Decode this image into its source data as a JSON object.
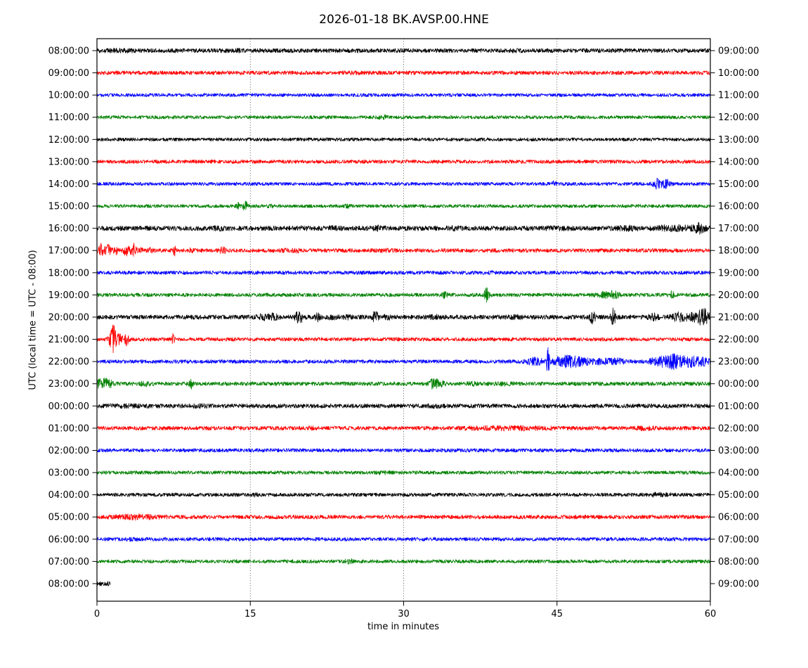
{
  "chart_data": {
    "type": "line",
    "subtype": "helicorder-dayplot-seismogram",
    "title": "2026-01-18 BK.AVSP.00.HNE",
    "xlabel": "time in minutes",
    "ylabel": "UTC (local time = UTC - 08:00)",
    "xlim": [
      0,
      60
    ],
    "x_ticks": [
      0,
      15,
      30,
      45,
      60
    ],
    "x_tick_labels": [
      "0",
      "15",
      "30",
      "45",
      "60"
    ],
    "grid_x_minutes": [
      15,
      30,
      45
    ],
    "grid_style": "dotted",
    "color_cycle": [
      "#000000",
      "#ff0000",
      "#0000ff",
      "#008000"
    ],
    "left_axis_unit": "UTC start time of row",
    "right_axis_unit": "UTC end time of row",
    "traces": [
      {
        "utc_label": "08:00:00",
        "right_label": "09:00:00",
        "color": "#000000",
        "base_amp": 3.0,
        "duration": 60,
        "events": [
          {
            "t": 2,
            "amp": 0.8,
            "w": 1.5
          },
          {
            "t": 13.5,
            "amp": 0.8,
            "w": 0.8
          },
          {
            "t": 41,
            "amp": 0.6,
            "w": 1.0
          }
        ]
      },
      {
        "utc_label": "09:00:00",
        "right_label": "10:00:00",
        "color": "#ff0000",
        "base_amp": 2.8,
        "duration": 60,
        "events": [
          {
            "t": 25,
            "amp": 0.5,
            "w": 1.0
          }
        ]
      },
      {
        "utc_label": "10:00:00",
        "right_label": "11:00:00",
        "color": "#0000ff",
        "base_amp": 2.4,
        "duration": 60,
        "events": [
          {
            "t": 21,
            "amp": 0.5,
            "w": 0.5
          }
        ]
      },
      {
        "utc_label": "11:00:00",
        "right_label": "12:00:00",
        "color": "#008000",
        "base_amp": 2.4,
        "duration": 60,
        "events": [
          {
            "t": 28,
            "amp": 2.0,
            "w": 0.4
          }
        ]
      },
      {
        "utc_label": "12:00:00",
        "right_label": "13:00:00",
        "color": "#000000",
        "base_amp": 2.4,
        "duration": 60,
        "events": []
      },
      {
        "utc_label": "13:00:00",
        "right_label": "14:00:00",
        "color": "#ff0000",
        "base_amp": 2.6,
        "duration": 60,
        "events": []
      },
      {
        "utc_label": "14:00:00",
        "right_label": "15:00:00",
        "color": "#0000ff",
        "base_amp": 2.4,
        "duration": 60,
        "events": [
          {
            "t": 44.7,
            "amp": 2.5,
            "w": 0.2
          },
          {
            "t": 54.8,
            "amp": 6,
            "w": 0.4
          },
          {
            "t": 55.7,
            "amp": 5,
            "w": 0.4
          }
        ]
      },
      {
        "utc_label": "15:00:00",
        "right_label": "16:00:00",
        "color": "#008000",
        "base_amp": 2.4,
        "duration": 60,
        "events": [
          {
            "t": 13.8,
            "amp": 4,
            "w": 0.2
          },
          {
            "t": 14.5,
            "amp": 6.5,
            "w": 0.22
          },
          {
            "t": 17,
            "amp": 2,
            "w": 0.2
          },
          {
            "t": 24.5,
            "amp": 1.2,
            "w": 0.3
          }
        ]
      },
      {
        "utc_label": "16:00:00",
        "right_label": "17:00:00",
        "color": "#000000",
        "base_amp": 3.4,
        "duration": 60,
        "events": [
          {
            "t": 12,
            "amp": 1,
            "w": 0.6
          },
          {
            "t": 20,
            "amp": 1.2,
            "w": 0.5
          },
          {
            "t": 23,
            "amp": 1.2,
            "w": 0.5
          },
          {
            "t": 27.5,
            "amp": 1.4,
            "w": 0.6
          },
          {
            "t": 35,
            "amp": 1,
            "w": 0.6
          },
          {
            "t": 45,
            "amp": 1,
            "w": 1
          },
          {
            "t": 52,
            "amp": 1.5,
            "w": 1
          },
          {
            "t": 55.5,
            "amp": 2,
            "w": 0.8
          },
          {
            "t": 57.5,
            "amp": 2,
            "w": 1.5
          },
          {
            "t": 58.9,
            "amp": 5.5,
            "w": 0.5
          }
        ]
      },
      {
        "utc_label": "17:00:00",
        "right_label": "18:00:00",
        "color": "#ff0000",
        "base_amp": 2.8,
        "duration": 60,
        "events": [
          {
            "t": 0.5,
            "amp": 10,
            "w": 0.3
          },
          {
            "t": 1.15,
            "amp": 6.5,
            "w": 0.25
          },
          {
            "t": 1.85,
            "amp": 4.5,
            "w": 0.2
          },
          {
            "t": 2.9,
            "amp": 9,
            "w": 0.3
          },
          {
            "t": 3.6,
            "amp": 8,
            "w": 0.3
          },
          {
            "t": 4.3,
            "amp": 3.5,
            "w": 0.2
          },
          {
            "t": 5.2,
            "amp": 1.8,
            "w": 0.3
          },
          {
            "t": 7.6,
            "amp": 5.5,
            "w": 0.25
          },
          {
            "t": 9.2,
            "amp": 1.5,
            "w": 0.2
          },
          {
            "t": 12.3,
            "amp": 4.5,
            "w": 0.25
          },
          {
            "t": 18.3,
            "amp": 1.5,
            "w": 0.6
          },
          {
            "t": 19.5,
            "amp": 1.2,
            "w": 0.4
          },
          {
            "t": 28,
            "amp": 1,
            "w": 0.8
          }
        ]
      },
      {
        "utc_label": "18:00:00",
        "right_label": "19:00:00",
        "color": "#0000ff",
        "base_amp": 2.6,
        "duration": 60,
        "events": [
          {
            "t": 16,
            "amp": 1,
            "w": 0.3
          },
          {
            "t": 38.5,
            "amp": 1.8,
            "w": 0.2
          }
        ]
      },
      {
        "utc_label": "19:00:00",
        "right_label": "20:00:00",
        "color": "#008000",
        "base_amp": 2.6,
        "duration": 60,
        "events": [
          {
            "t": 34,
            "amp": 3.5,
            "w": 0.22
          },
          {
            "t": 38.1,
            "amp": 8.5,
            "w": 0.22
          },
          {
            "t": 49.8,
            "amp": 3,
            "w": 1.0
          },
          {
            "t": 50.6,
            "amp": 2.5,
            "w": 0.5
          },
          {
            "t": 56.2,
            "amp": 4.5,
            "w": 0.25
          }
        ]
      },
      {
        "utc_label": "20:00:00",
        "right_label": "21:00:00",
        "color": "#000000",
        "base_amp": 3.2,
        "duration": 60,
        "events": [
          {
            "t": 16.2,
            "amp": 2.5,
            "w": 0.5
          },
          {
            "t": 17.2,
            "amp": 3,
            "w": 0.5
          },
          {
            "t": 19.8,
            "amp": 7,
            "w": 0.4
          },
          {
            "t": 21.6,
            "amp": 4,
            "w": 0.25
          },
          {
            "t": 23,
            "amp": 2,
            "w": 0.4
          },
          {
            "t": 24.5,
            "amp": 1.5,
            "w": 0.4
          },
          {
            "t": 27.2,
            "amp": 8,
            "w": 0.3
          },
          {
            "t": 28.4,
            "amp": 3,
            "w": 0.3
          },
          {
            "t": 33,
            "amp": 1.5,
            "w": 0.5
          },
          {
            "t": 41,
            "amp": 1,
            "w": 0.8
          },
          {
            "t": 48.5,
            "amp": 10,
            "w": 0.22
          },
          {
            "t": 50.5,
            "amp": 10,
            "w": 0.22
          },
          {
            "t": 54.5,
            "amp": 3,
            "w": 0.5
          },
          {
            "t": 57,
            "amp": 5,
            "w": 0.7
          },
          {
            "t": 58.3,
            "amp": 4,
            "w": 0.5
          },
          {
            "t": 59.3,
            "amp": 12,
            "w": 0.5
          }
        ]
      },
      {
        "utc_label": "21:00:00",
        "right_label": "22:00:00",
        "color": "#ff0000",
        "base_amp": 2.6,
        "duration": 60,
        "events": [
          {
            "t": 1.6,
            "amp": 21,
            "w": 0.35
          },
          {
            "t": 2.3,
            "amp": 5,
            "w": 0.3
          },
          {
            "t": 2.9,
            "amp": 8,
            "w": 0.2
          },
          {
            "t": 7.4,
            "amp": 6.5,
            "w": 0.18
          }
        ]
      },
      {
        "utc_label": "22:00:00",
        "right_label": "23:00:00",
        "color": "#0000ff",
        "base_amp": 2.6,
        "duration": 60,
        "events": [
          {
            "t": 42.8,
            "amp": 4,
            "w": 0.8
          },
          {
            "t": 44.1,
            "amp": 19,
            "w": 0.15
          },
          {
            "t": 45.6,
            "amp": 4.5,
            "w": 1.2
          },
          {
            "t": 47,
            "amp": 4.5,
            "w": 1.5
          },
          {
            "t": 49.5,
            "amp": 3,
            "w": 0.8
          },
          {
            "t": 51,
            "amp": 3,
            "w": 0.8
          },
          {
            "t": 55,
            "amp": 6,
            "w": 0.9
          },
          {
            "t": 56.3,
            "amp": 7,
            "w": 0.7
          },
          {
            "t": 57.3,
            "amp": 6,
            "w": 0.8
          },
          {
            "t": 58.3,
            "amp": 5,
            "w": 0.7
          },
          {
            "t": 59.3,
            "amp": 4.5,
            "w": 0.6
          }
        ]
      },
      {
        "utc_label": "23:00:00",
        "right_label": "00:00:00",
        "color": "#008000",
        "base_amp": 2.8,
        "duration": 60,
        "events": [
          {
            "t": 0.4,
            "amp": 5.5,
            "w": 0.5
          },
          {
            "t": 1.1,
            "amp": 4.5,
            "w": 0.4
          },
          {
            "t": 4.7,
            "amp": 2.5,
            "w": 0.4
          },
          {
            "t": 9.2,
            "amp": 6,
            "w": 0.18
          },
          {
            "t": 32.9,
            "amp": 5.5,
            "w": 0.5
          },
          {
            "t": 33.6,
            "amp": 2.5,
            "w": 0.4
          },
          {
            "t": 36.8,
            "amp": 1.3,
            "w": 0.6
          },
          {
            "t": 40,
            "amp": 1,
            "w": 0.8
          }
        ]
      },
      {
        "utc_label": "00:00:00",
        "right_label": "01:00:00",
        "color": "#000000",
        "base_amp": 3.0,
        "duration": 60,
        "events": [
          {
            "t": 3,
            "amp": 0.8,
            "w": 2
          },
          {
            "t": 10,
            "amp": 0.8,
            "w": 1
          },
          {
            "t": 33,
            "amp": 0.8,
            "w": 1
          }
        ]
      },
      {
        "utc_label": "01:00:00",
        "right_label": "02:00:00",
        "color": "#ff0000",
        "base_amp": 2.8,
        "duration": 60,
        "events": [
          {
            "t": 21,
            "amp": 0.6,
            "w": 0.8
          },
          {
            "t": 40,
            "amp": 1.6,
            "w": 4
          },
          {
            "t": 53.5,
            "amp": 1.4,
            "w": 0.8
          }
        ]
      },
      {
        "utc_label": "02:00:00",
        "right_label": "03:00:00",
        "color": "#0000ff",
        "base_amp": 2.6,
        "duration": 60,
        "events": []
      },
      {
        "utc_label": "03:00:00",
        "right_label": "04:00:00",
        "color": "#008000",
        "base_amp": 2.5,
        "duration": 60,
        "events": [
          {
            "t": 28,
            "amp": 1,
            "w": 0.8
          }
        ]
      },
      {
        "utc_label": "04:00:00",
        "right_label": "05:00:00",
        "color": "#000000",
        "base_amp": 2.6,
        "duration": 60,
        "events": [
          {
            "t": 15.5,
            "amp": 0.8,
            "w": 0.4
          },
          {
            "t": 55,
            "amp": 1.6,
            "w": 1
          }
        ]
      },
      {
        "utc_label": "05:00:00",
        "right_label": "06:00:00",
        "color": "#ff0000",
        "base_amp": 2.8,
        "duration": 60,
        "events": [
          {
            "t": 4,
            "amp": 2.2,
            "w": 1.8
          }
        ]
      },
      {
        "utc_label": "06:00:00",
        "right_label": "07:00:00",
        "color": "#0000ff",
        "base_amp": 2.6,
        "duration": 60,
        "events": [
          {
            "t": 3.5,
            "amp": 1,
            "w": 0.5
          }
        ]
      },
      {
        "utc_label": "07:00:00",
        "right_label": "08:00:00",
        "color": "#008000",
        "base_amp": 2.5,
        "duration": 60,
        "events": [
          {
            "t": 24.7,
            "amp": 2.2,
            "w": 0.5
          }
        ]
      },
      {
        "utc_label": "08:00:00",
        "right_label": "09:00:00",
        "color": "#000000",
        "base_amp": 3.6,
        "duration": 1.35,
        "events": []
      }
    ]
  }
}
